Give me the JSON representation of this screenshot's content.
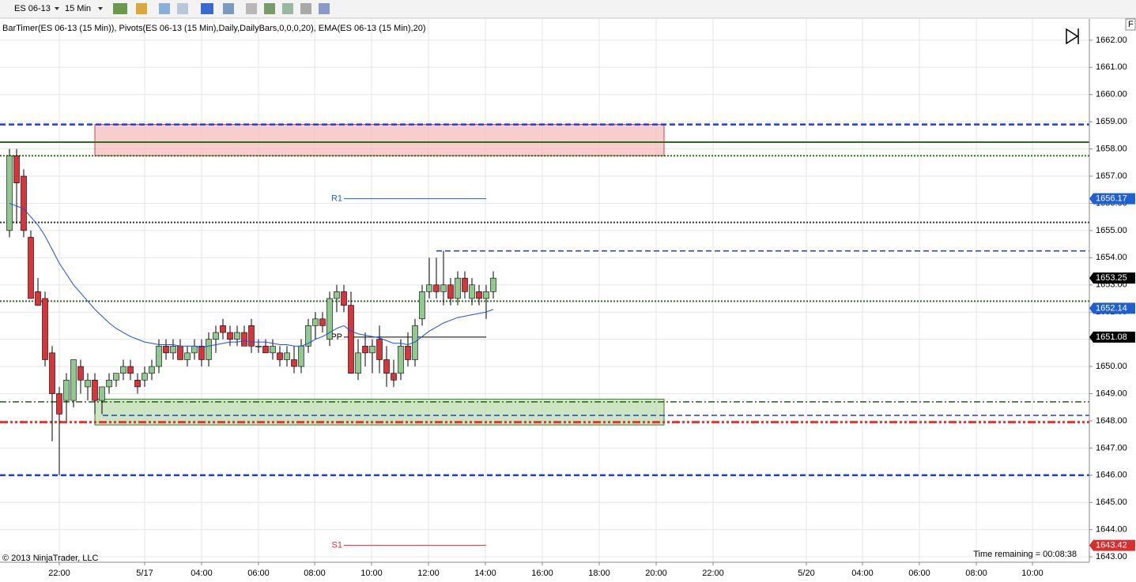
{
  "toolbar": {
    "instrument": "ES 06-13",
    "interval": "15 Min",
    "corner": "F"
  },
  "chart_data": {
    "type": "candlestick",
    "indicator_label": "BarTimer(ES 06-13 (15 Min)), Pivots(ES 06-13 (15 Min),Daily,DailyBars,0,0,0,20), EMA(ES 06-13 (15 Min),20)",
    "copyright": "© 2013 NinjaTrader, LLC",
    "time_remaining": "Time remaining = 00:08:38",
    "xtick_labels": [
      "22:00",
      "5/17",
      "04:00",
      "06:00",
      "08:00",
      "10:00",
      "12:00",
      "14:00",
      "16:00",
      "18:00",
      "20:00",
      "22:00",
      "5/20",
      "04:00",
      "06:00",
      "08:00",
      "10:00"
    ],
    "ylim": [
      1642.8,
      1662.78
    ],
    "yticks": [
      {
        "value": 1643,
        "label": "1643.00"
      },
      {
        "value": 1644,
        "label": "1644.00"
      },
      {
        "value": 1645,
        "label": "1645.00"
      },
      {
        "value": 1646,
        "label": "1646.00"
      },
      {
        "value": 1647,
        "label": "1647.00"
      },
      {
        "value": 1648,
        "label": "1648.00"
      },
      {
        "value": 1649,
        "label": "1649.00"
      },
      {
        "value": 1650,
        "label": "1650.00"
      },
      {
        "value": 1651,
        "label": "1651.00"
      },
      {
        "value": 1652,
        "label": "1652.00"
      },
      {
        "value": 1653,
        "label": "1653.00"
      },
      {
        "value": 1654,
        "label": "1654.00"
      },
      {
        "value": 1655,
        "label": "1655.00"
      },
      {
        "value": 1656,
        "label": "1656.00"
      },
      {
        "value": 1657,
        "label": "1657.00"
      },
      {
        "value": 1658,
        "label": "1658.00"
      },
      {
        "value": 1659,
        "label": "1659.00"
      },
      {
        "value": 1660,
        "label": "1660.00"
      },
      {
        "value": 1661,
        "label": "1661.00"
      },
      {
        "value": 1662,
        "label": "1662.00"
      }
    ],
    "grid": true,
    "up_color": "#90c890",
    "down_color": "#d8343a",
    "open": [
      1655.0,
      1657.75,
      1657.0,
      1654.75,
      1652.75,
      1652.5,
      1650.5,
      1649.0,
      1648.75,
      1648.75,
      1650.0,
      1649.25,
      1649.5,
      1648.75,
      1649.25,
      1649.5,
      1649.75,
      1650.0,
      1649.5,
      1649.5,
      1649.75,
      1650.0,
      1650.75,
      1650.5,
      1650.75,
      1650.25,
      1650.5,
      1650.75,
      1650.25,
      1651.0,
      1651.5,
      1651.25,
      1651.0,
      1651.25,
      1651.5,
      1650.75,
      1650.75,
      1650.5,
      1650.5,
      1650.25,
      1650.25,
      1650.0,
      1650.75,
      1651.5,
      1651.75,
      1651.0,
      1652.5,
      1652.75,
      1652.25,
      1649.75,
      1650.75,
      1650.5,
      1651.0,
      1650.25,
      1649.75,
      1649.75,
      1650.75,
      1650.25,
      1651.75,
      1652.75,
      1653.0,
      1652.75,
      1653.0,
      1652.5,
      1653.25,
      1652.5,
      1652.75,
      1652.5,
      1652.75
    ],
    "high": [
      1658.0,
      1658.0,
      1657.25,
      1655.0,
      1653.25,
      1652.75,
      1650.75,
      1649.25,
      1649.75,
      1650.25,
      1650.25,
      1649.75,
      1649.75,
      1649.25,
      1649.75,
      1649.75,
      1650.25,
      1650.25,
      1649.75,
      1650.0,
      1650.25,
      1651.0,
      1651.0,
      1651.0,
      1651.0,
      1650.75,
      1651.0,
      1651.0,
      1651.25,
      1651.5,
      1651.75,
      1651.5,
      1651.5,
      1651.5,
      1651.75,
      1651.0,
      1651.0,
      1651.0,
      1650.75,
      1650.75,
      1650.75,
      1651.0,
      1651.75,
      1652.0,
      1652.0,
      1652.75,
      1653.0,
      1653.0,
      1652.75,
      1651.0,
      1651.25,
      1651.0,
      1651.5,
      1650.75,
      1650.25,
      1651.0,
      1651.25,
      1651.75,
      1653.0,
      1654.0,
      1654.0,
      1654.25,
      1653.25,
      1653.5,
      1653.5,
      1653.25,
      1653.0,
      1653.0,
      1653.5
    ],
    "low": [
      1654.75,
      1655.25,
      1654.75,
      1652.5,
      1652.25,
      1650.0,
      1647.25,
      1646.0,
      1648.0,
      1648.5,
      1649.0,
      1648.75,
      1648.25,
      1648.25,
      1649.0,
      1649.25,
      1649.5,
      1649.5,
      1649.0,
      1649.25,
      1649.5,
      1649.75,
      1650.25,
      1650.25,
      1650.25,
      1650.0,
      1650.25,
      1650.0,
      1650.0,
      1650.5,
      1651.0,
      1650.75,
      1650.75,
      1650.75,
      1650.5,
      1650.5,
      1650.5,
      1650.25,
      1650.0,
      1650.0,
      1649.75,
      1649.75,
      1650.5,
      1651.0,
      1651.25,
      1650.75,
      1652.0,
      1652.0,
      1649.75,
      1649.5,
      1650.0,
      1649.75,
      1649.75,
      1649.25,
      1649.25,
      1649.5,
      1650.0,
      1650.0,
      1651.5,
      1652.5,
      1652.5,
      1652.25,
      1652.25,
      1652.25,
      1652.5,
      1652.25,
      1652.25,
      1651.75,
      1652.5
    ],
    "close": [
      1657.75,
      1656.75,
      1655.0,
      1652.5,
      1652.25,
      1650.25,
      1649.0,
      1648.25,
      1649.5,
      1650.25,
      1649.5,
      1649.5,
      1648.75,
      1649.25,
      1649.5,
      1649.75,
      1650.0,
      1649.75,
      1649.25,
      1649.75,
      1650.0,
      1650.75,
      1650.5,
      1650.75,
      1650.25,
      1650.5,
      1650.75,
      1650.25,
      1651.0,
      1651.25,
      1651.25,
      1651.0,
      1651.25,
      1650.75,
      1650.75,
      1650.75,
      1650.5,
      1650.75,
      1650.25,
      1650.5,
      1650.0,
      1650.75,
      1651.5,
      1651.75,
      1651.5,
      1652.5,
      1652.75,
      1652.25,
      1649.75,
      1650.5,
      1650.5,
      1650.75,
      1650.25,
      1649.75,
      1649.5,
      1650.75,
      1650.25,
      1651.5,
      1652.75,
      1653.0,
      1652.75,
      1653.0,
      1652.5,
      1653.25,
      1652.75,
      1653.0,
      1652.5,
      1652.75,
      1653.25
    ],
    "ema": {
      "color": "#1f4fe0",
      "values": [
        1656.0,
        1655.9,
        1655.8,
        1655.5,
        1655.2,
        1654.8,
        1654.3,
        1653.8,
        1653.4,
        1653.0,
        1652.7,
        1652.4,
        1652.1,
        1651.85,
        1651.6,
        1651.4,
        1651.25,
        1651.1,
        1651.0,
        1650.9,
        1650.85,
        1650.8,
        1650.8,
        1650.8,
        1650.75,
        1650.75,
        1650.75,
        1650.7,
        1650.75,
        1650.8,
        1650.85,
        1650.9,
        1650.9,
        1650.95,
        1650.9,
        1650.9,
        1650.9,
        1650.85,
        1650.8,
        1650.8,
        1650.75,
        1650.75,
        1650.85,
        1651.0,
        1651.1,
        1651.25,
        1651.4,
        1651.5,
        1651.3,
        1651.2,
        1651.15,
        1651.1,
        1651.05,
        1650.95,
        1650.85,
        1650.85,
        1650.8,
        1650.9,
        1651.1,
        1651.3,
        1651.45,
        1651.6,
        1651.7,
        1651.8,
        1651.85,
        1651.9,
        1651.95,
        1652.0,
        1652.1
      ]
    },
    "levels": [
      {
        "value": 1658.9,
        "color": "#1f3fe0",
        "style": "dashed"
      },
      {
        "value": 1658.25,
        "color": "#2e6b1e",
        "style": "solid"
      },
      {
        "value": 1657.75,
        "color": "#2e6b1e",
        "style": "dotted"
      },
      {
        "value": 1655.3,
        "color": "#333333",
        "style": "dotted"
      },
      {
        "value": 1654.25,
        "color": "#1f3fe0",
        "style": "dashed"
      },
      {
        "value": 1652.4,
        "color": "#2e6b1e",
        "style": "dotted"
      },
      {
        "value": 1648.7,
        "color": "#2e5a1e",
        "style": "dashdot"
      },
      {
        "value": 1648.2,
        "color": "#1f3fe0",
        "style": "dashed"
      },
      {
        "value": 1647.95,
        "color": "#e8352e",
        "style": "dashdotdot"
      },
      {
        "value": 1646.0,
        "color": "#1f3fe0",
        "style": "dashed"
      }
    ],
    "zones": [
      {
        "low": 1657.75,
        "high": 1658.9,
        "color": "#f5b8b8",
        "border": "#d84040"
      },
      {
        "low": 1647.85,
        "high": 1648.8,
        "color": "#b8dba8",
        "border": "#3b7a2a"
      }
    ],
    "pivots": [
      {
        "name": "R1",
        "value": 1656.17,
        "color": "#1f5fd0"
      },
      {
        "name": "PP",
        "value": 1651.08,
        "color": "#000000"
      },
      {
        "name": "S1",
        "value": 1643.42,
        "color": "#d83030"
      }
    ],
    "price_labels": [
      {
        "value": 1656.17,
        "label": "1656.17",
        "color": "#1f5fd0"
      },
      {
        "value": 1653.25,
        "label": "1653.25",
        "color": "#000000"
      },
      {
        "value": 1652.14,
        "label": "1652.14",
        "color": "#1f5fd0"
      },
      {
        "value": 1651.08,
        "label": "1651.08",
        "color": "#000000"
      },
      {
        "value": 1643.42,
        "label": "1643.42",
        "color": "#d83030"
      }
    ]
  }
}
